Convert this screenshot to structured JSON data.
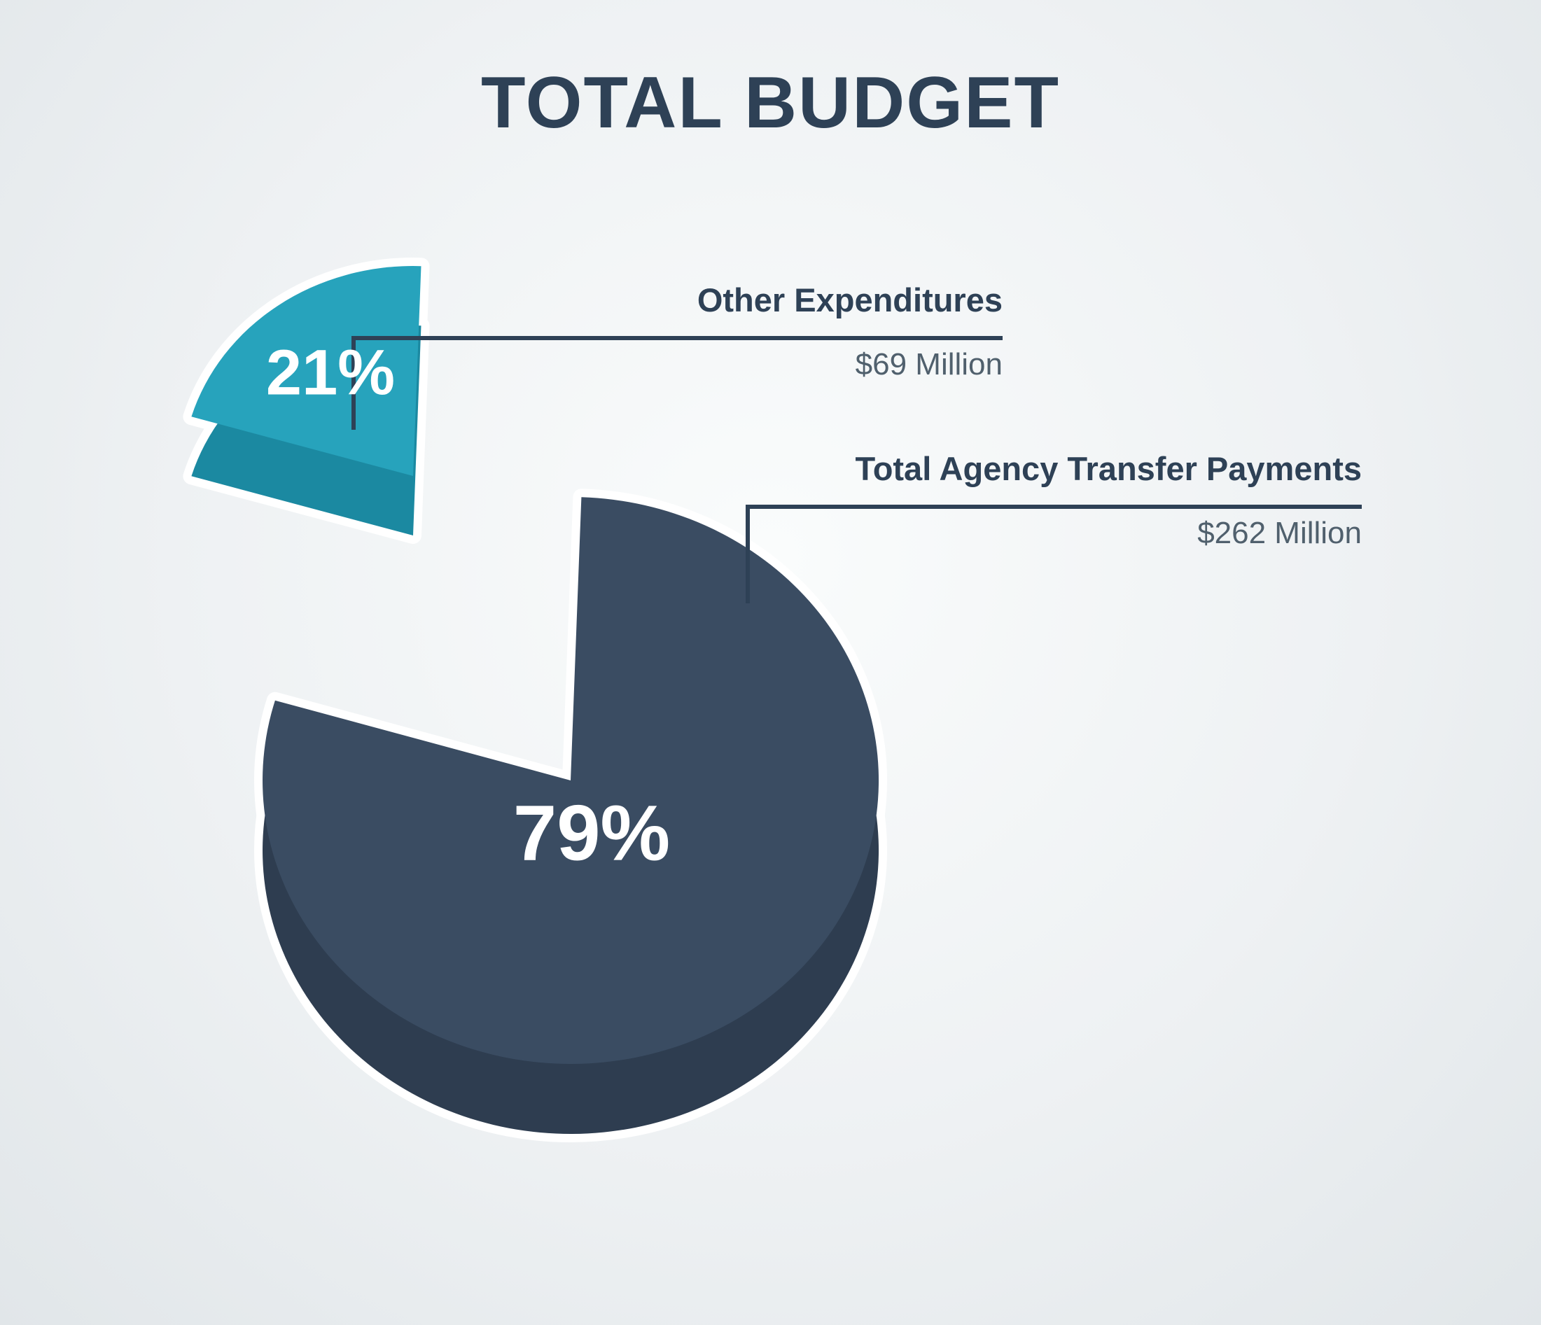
{
  "page": {
    "title": "TOTAL BUDGET"
  },
  "chart_data": {
    "type": "pie",
    "style": "3d-exploded",
    "title": "TOTAL BUDGET",
    "legend_position": "callout-lines-right",
    "slices": [
      {
        "label": "Other Expenditures",
        "value": 69,
        "value_label": "$69 Million",
        "percent": 21,
        "percent_label": "21%",
        "color": "#27a3bc",
        "side_color": "#1b89a1",
        "exploded": true
      },
      {
        "label": "Total Agency Transfer Payments",
        "value": 262,
        "value_label": "$262 Million",
        "percent": 79,
        "percent_label": "79%",
        "color": "#3a4c62",
        "side_color": "#2e3d50",
        "exploded": false
      }
    ],
    "units": "Millions USD",
    "total_label": "TOTAL BUDGET"
  },
  "colors": {
    "background": "#eef1f3",
    "title_text": "#2e4156",
    "callout_label_text": "#2e4156",
    "callout_value_text": "#50606d",
    "callout_line": "#2e4156",
    "percent_text": "#ffffff"
  }
}
